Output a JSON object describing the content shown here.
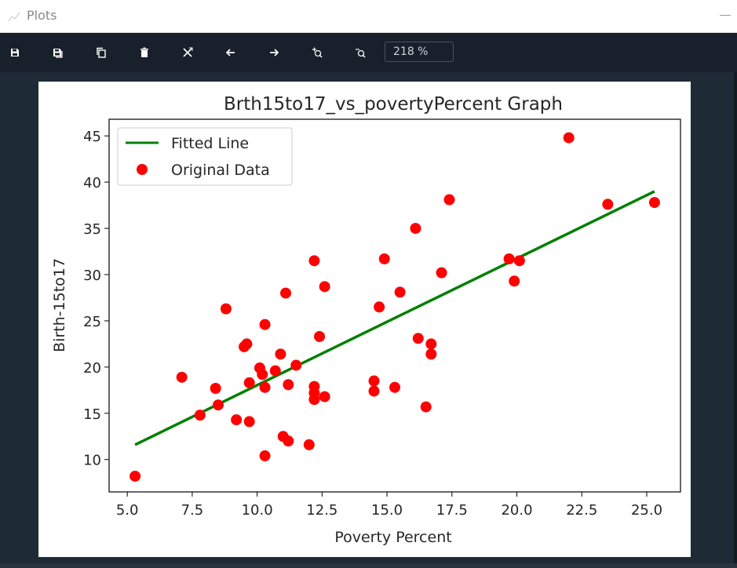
{
  "window": {
    "title": "Plots"
  },
  "toolbar": {
    "zoom_value": "218 %",
    "buttons": [
      {
        "name": "save-icon"
      },
      {
        "name": "save-all-icon"
      },
      {
        "name": "copy-icon"
      },
      {
        "name": "delete-icon"
      },
      {
        "name": "delete-all-icon"
      },
      {
        "name": "arrow-left-icon"
      },
      {
        "name": "arrow-right-icon"
      },
      {
        "name": "zoom-in-icon"
      },
      {
        "name": "zoom-out-icon"
      }
    ]
  },
  "colors": {
    "fit_line": "#008000",
    "points": "#ff0000",
    "axes": "#000000"
  },
  "chart_data": {
    "type": "scatter",
    "title": "Brth15to17_vs_povertyPercent Graph",
    "xlabel": "Poverty Percent",
    "ylabel": "Birth-15to17",
    "xlim": [
      4.3,
      26.3
    ],
    "ylim": [
      6.5,
      46.8
    ],
    "xticks": [
      "5.0",
      "7.5",
      "10.0",
      "12.5",
      "15.0",
      "17.5",
      "20.0",
      "22.5",
      "25.0"
    ],
    "xtick_values": [
      5.0,
      7.5,
      10.0,
      12.5,
      15.0,
      17.5,
      20.0,
      22.5,
      25.0
    ],
    "yticks": [
      "10",
      "15",
      "20",
      "25",
      "30",
      "35",
      "40",
      "45"
    ],
    "ytick_values": [
      10,
      15,
      20,
      25,
      30,
      35,
      40,
      45
    ],
    "legend": {
      "placement": "top-left",
      "entries": [
        "Fitted Line",
        "Original Data"
      ]
    },
    "grid": false,
    "series": [
      {
        "name": "Fitted Line",
        "kind": "line",
        "x": [
          5.3,
          25.3
        ],
        "y": [
          11.6,
          39.0
        ]
      },
      {
        "name": "Original Data",
        "kind": "scatter",
        "x": [
          5.3,
          7.1,
          7.8,
          8.4,
          8.5,
          8.8,
          9.2,
          9.5,
          9.6,
          9.7,
          9.7,
          10.1,
          10.2,
          10.3,
          10.3,
          10.3,
          10.7,
          10.9,
          11.0,
          11.1,
          11.2,
          11.2,
          11.5,
          12.0,
          12.2,
          12.2,
          12.2,
          12.2,
          12.4,
          12.6,
          12.6,
          14.5,
          14.5,
          14.7,
          14.9,
          15.3,
          15.5,
          16.1,
          16.2,
          16.5,
          16.7,
          16.7,
          17.1,
          17.4,
          19.7,
          19.9,
          20.1,
          22.0,
          23.5,
          25.3
        ],
        "y": [
          8.2,
          18.9,
          14.8,
          17.7,
          15.9,
          26.3,
          14.3,
          22.2,
          22.5,
          18.3,
          14.1,
          19.9,
          19.2,
          24.6,
          17.8,
          10.4,
          19.6,
          21.4,
          12.5,
          28.0,
          18.1,
          12.0,
          20.2,
          11.6,
          31.5,
          17.9,
          17.2,
          16.5,
          23.3,
          16.8,
          28.7,
          18.5,
          17.4,
          26.5,
          31.7,
          17.8,
          28.1,
          35.0,
          23.1,
          15.7,
          22.5,
          21.4,
          30.2,
          38.1,
          31.7,
          29.3,
          31.5,
          44.8,
          37.6,
          37.8
        ]
      }
    ]
  }
}
